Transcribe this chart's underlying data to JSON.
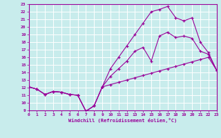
{
  "xlabel": "Windchill (Refroidissement éolien,°C)",
  "xlim": [
    0,
    23
  ],
  "ylim": [
    9,
    23
  ],
  "xticks": [
    0,
    1,
    2,
    3,
    4,
    5,
    6,
    7,
    8,
    9,
    10,
    11,
    12,
    13,
    14,
    15,
    16,
    17,
    18,
    19,
    20,
    21,
    22,
    23
  ],
  "yticks": [
    9,
    10,
    11,
    12,
    13,
    14,
    15,
    16,
    17,
    18,
    19,
    20,
    21,
    22,
    23
  ],
  "bg_color": "#c8ecec",
  "line_color": "#990099",
  "grid_color": "#ffffff",
  "line1_x": [
    0,
    1,
    2,
    3,
    4,
    5,
    6,
    7,
    8,
    9,
    10,
    11,
    12,
    13,
    14,
    15,
    16,
    17,
    18,
    19,
    20,
    21,
    22,
    23
  ],
  "line1_y": [
    12.1,
    11.8,
    11.1,
    11.5,
    11.4,
    11.1,
    11.0,
    8.9,
    9.6,
    12.1,
    12.4,
    12.7,
    13.0,
    13.3,
    13.6,
    13.9,
    14.2,
    14.5,
    14.8,
    15.1,
    15.4,
    15.7,
    16.0,
    14.3
  ],
  "line2_x": [
    0,
    1,
    2,
    3,
    4,
    5,
    6,
    7,
    8,
    9,
    10,
    11,
    12,
    13,
    14,
    15,
    16,
    17,
    18,
    19,
    20,
    21,
    22,
    23
  ],
  "line2_y": [
    12.1,
    11.8,
    11.1,
    11.5,
    11.4,
    11.1,
    11.0,
    8.9,
    9.6,
    12.1,
    13.5,
    14.5,
    15.5,
    16.8,
    17.3,
    15.5,
    18.8,
    19.3,
    18.6,
    18.8,
    18.5,
    16.8,
    16.4,
    14.3
  ],
  "line3_x": [
    0,
    1,
    2,
    3,
    4,
    5,
    6,
    7,
    8,
    9,
    10,
    11,
    12,
    13,
    14,
    15,
    16,
    17,
    18,
    19,
    20,
    21,
    22,
    23
  ],
  "line3_y": [
    12.1,
    11.8,
    11.1,
    11.5,
    11.4,
    11.1,
    11.0,
    8.9,
    9.6,
    12.1,
    14.5,
    16.0,
    17.5,
    19.0,
    20.5,
    22.0,
    22.3,
    22.7,
    21.2,
    20.8,
    21.2,
    18.0,
    16.6,
    14.3
  ]
}
